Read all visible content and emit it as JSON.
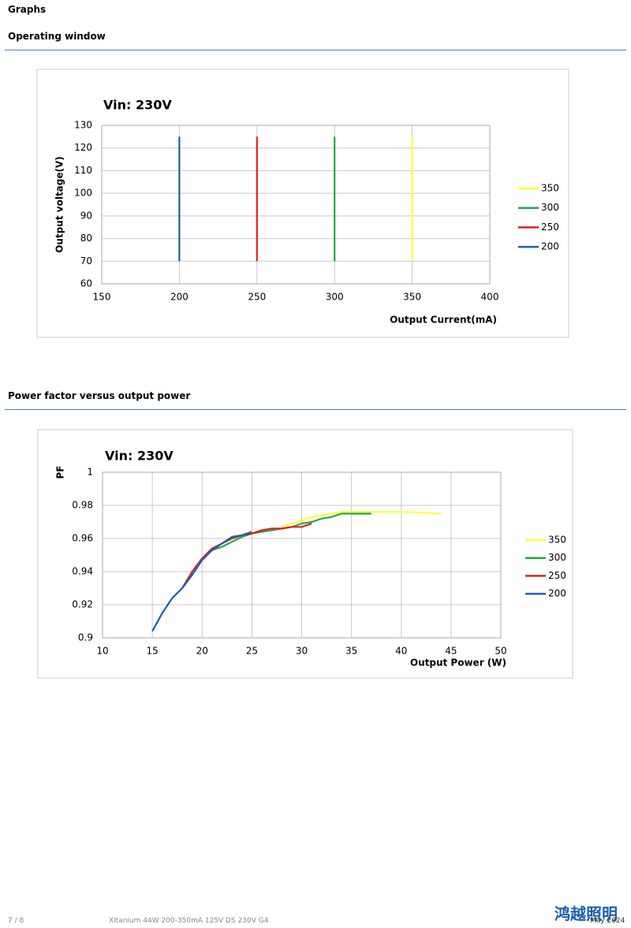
{
  "header": {
    "title": "Graphs"
  },
  "sections": [
    {
      "title": "Operating window"
    },
    {
      "title": "Power factor versus output power"
    }
  ],
  "footer": {
    "page": "7 / 8",
    "document": "Xitanium 44W 200-350mA 125V DS 230V G4",
    "date": "May 2024",
    "logo": "鸿越照明"
  },
  "chart_data": [
    {
      "type": "line",
      "title": "Vin: 230V",
      "x_label": "Output Current(mA)",
      "y_label": "Output voltage(V)",
      "xlim": [
        150,
        400
      ],
      "xticks": [
        150,
        200,
        250,
        300,
        350,
        400
      ],
      "ylim": [
        60,
        130
      ],
      "yticks": [
        60,
        70,
        80,
        90,
        100,
        110,
        120,
        130
      ],
      "grid": true,
      "legend": "right",
      "series": [
        {
          "name": "350",
          "color": "#ffff33",
          "x": [
            350,
            350
          ],
          "values": [
            70,
            125
          ]
        },
        {
          "name": "300",
          "color": "#22aa44",
          "x": [
            300,
            300
          ],
          "values": [
            70,
            125
          ]
        },
        {
          "name": "250",
          "color": "#e02020",
          "x": [
            250,
            250
          ],
          "values": [
            70,
            125
          ]
        },
        {
          "name": "200",
          "color": "#1a5fb0",
          "x": [
            200,
            200
          ],
          "values": [
            70,
            125
          ]
        }
      ]
    },
    {
      "type": "line",
      "title": "Vin: 230V",
      "x_label": "Output Power (W)",
      "y_label": "PF",
      "xlim": [
        10,
        50
      ],
      "xticks": [
        10,
        15,
        20,
        25,
        30,
        35,
        40,
        45,
        50
      ],
      "ylim": [
        0.9,
        1
      ],
      "yticks": [
        0.9,
        0.92,
        0.94,
        0.96,
        0.98,
        1
      ],
      "grid": true,
      "legend": "right",
      "series": [
        {
          "name": "350",
          "color": "#ffff33",
          "x": [
            28,
            29,
            30,
            31,
            32,
            33,
            34,
            35,
            36,
            37,
            38,
            39,
            40,
            41,
            42,
            43,
            44
          ],
          "values": [
            0.967,
            0.969,
            0.971,
            0.973,
            0.974,
            0.975,
            0.976,
            0.976,
            0.976,
            0.976,
            0.976,
            0.976,
            0.976,
            0.976,
            0.9755,
            0.9755,
            0.975
          ]
        },
        {
          "name": "300",
          "color": "#22aa44",
          "x": [
            21,
            22,
            23,
            24,
            25,
            26,
            27,
            28,
            29,
            30,
            31,
            32,
            33,
            34,
            35,
            36,
            37
          ],
          "values": [
            0.953,
            0.955,
            0.958,
            0.961,
            0.963,
            0.964,
            0.965,
            0.966,
            0.967,
            0.969,
            0.97,
            0.972,
            0.973,
            0.975,
            0.975,
            0.975,
            0.975
          ]
        },
        {
          "name": "250",
          "color": "#e02020",
          "x": [
            18,
            19,
            20,
            21,
            22,
            23,
            24,
            25,
            26,
            27,
            28,
            29,
            30,
            31
          ],
          "values": [
            0.93,
            0.94,
            0.948,
            0.954,
            0.957,
            0.96,
            0.962,
            0.963,
            0.965,
            0.966,
            0.966,
            0.967,
            0.967,
            0.969
          ]
        },
        {
          "name": "200",
          "color": "#1a5fb0",
          "x": [
            15,
            16,
            17,
            18,
            19,
            20,
            21,
            22,
            23,
            24,
            25
          ],
          "values": [
            0.904,
            0.915,
            0.924,
            0.93,
            0.938,
            0.947,
            0.953,
            0.957,
            0.961,
            0.962,
            0.964
          ]
        }
      ]
    }
  ]
}
